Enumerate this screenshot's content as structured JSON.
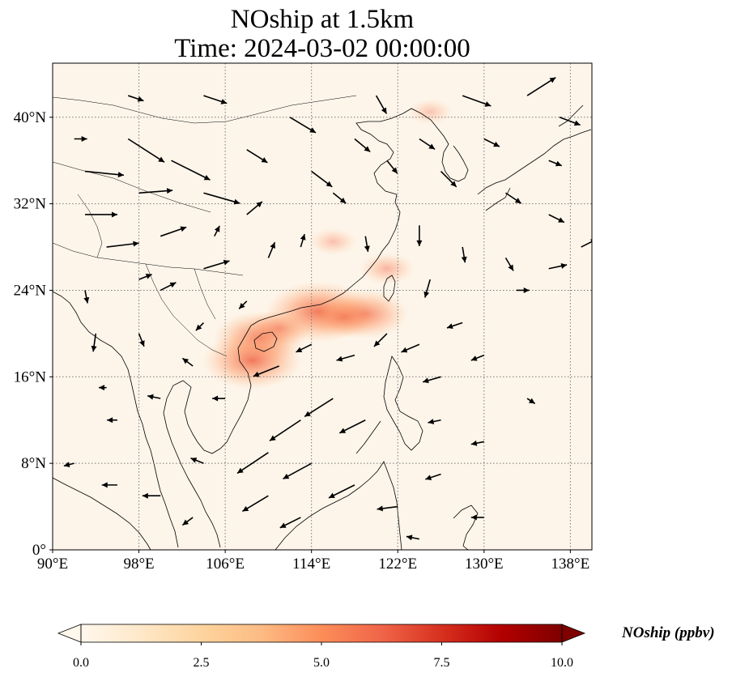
{
  "title_line1": "NOship at 1.5km",
  "title_line2": "Time: 2024-03-02 00:00:00",
  "map": {
    "lon_range": [
      90,
      140
    ],
    "lat_range": [
      0,
      45
    ],
    "lon_ticks": [
      {
        "value": 90,
        "label": "90°E"
      },
      {
        "value": 98,
        "label": "98°E"
      },
      {
        "value": 106,
        "label": "106°E"
      },
      {
        "value": 114,
        "label": "114°E"
      },
      {
        "value": 122,
        "label": "122°E"
      },
      {
        "value": 130,
        "label": "130°E"
      },
      {
        "value": 138,
        "label": "138°E"
      }
    ],
    "lat_ticks": [
      {
        "value": 0,
        "label": "0°"
      },
      {
        "value": 8,
        "label": "8°N"
      },
      {
        "value": 16,
        "label": "16°N"
      },
      {
        "value": 24,
        "label": "24°N"
      },
      {
        "value": 32,
        "label": "32°N"
      },
      {
        "value": 40,
        "label": "40°N"
      }
    ],
    "gridlines": true,
    "background_color": "#fdf5ea",
    "coastline_color": "#000000"
  },
  "colorbar": {
    "label": "NOship (ppbv)",
    "min": 0.0,
    "max": 10.0,
    "extend": "both",
    "colormap": "OrRd",
    "colors": [
      "#fff7ec",
      "#fee8c8",
      "#fdd49e",
      "#fdbb84",
      "#fc8d59",
      "#ef6548",
      "#d7301f",
      "#b30000",
      "#7f0000"
    ],
    "ticks": [
      {
        "value": 0.0,
        "label": "0.0"
      },
      {
        "value": 2.5,
        "label": "2.5"
      },
      {
        "value": 5.0,
        "label": "5.0"
      },
      {
        "value": 7.5,
        "label": "7.5"
      },
      {
        "value": 10.0,
        "label": "10.0"
      }
    ]
  },
  "plumes": [
    {
      "lon": 114.7,
      "lat": 22.0,
      "value": 5.5
    },
    {
      "lon": 109.2,
      "lat": 19.6,
      "value": 4.5
    },
    {
      "lon": 108.5,
      "lat": 17.5,
      "value": 5.0
    },
    {
      "lon": 119.0,
      "lat": 21.8,
      "value": 4.0
    },
    {
      "lon": 117.0,
      "lat": 21.5,
      "value": 3.0
    },
    {
      "lon": 111.0,
      "lat": 20.5,
      "value": 2.5
    },
    {
      "lon": 121.0,
      "lat": 26.0,
      "value": 1.8
    },
    {
      "lon": 116.0,
      "lat": 28.5,
      "value": 1.2
    },
    {
      "lon": 125.0,
      "lat": 40.5,
      "value": 1.0
    }
  ],
  "wind_vectors": [
    {
      "lon": 93,
      "lat": 35,
      "u": 3.0,
      "v": -0.3
    },
    {
      "lon": 97,
      "lat": 38,
      "u": 2.8,
      "v": -1.8
    },
    {
      "lon": 101,
      "lat": 36,
      "u": 3.0,
      "v": -1.5
    },
    {
      "lon": 104,
      "lat": 33,
      "u": 2.8,
      "v": -0.8
    },
    {
      "lon": 98,
      "lat": 33,
      "u": 2.6,
      "v": 0.2
    },
    {
      "lon": 93,
      "lat": 31,
      "u": 2.5,
      "v": 0.0
    },
    {
      "lon": 95,
      "lat": 28,
      "u": 2.5,
      "v": 0.3
    },
    {
      "lon": 100,
      "lat": 29,
      "u": 2.0,
      "v": 0.7
    },
    {
      "lon": 104,
      "lat": 26,
      "u": 2.0,
      "v": 0.6
    },
    {
      "lon": 100,
      "lat": 24,
      "u": 1.2,
      "v": 0.6
    },
    {
      "lon": 108,
      "lat": 31,
      "u": 1.2,
      "v": 1.0
    },
    {
      "lon": 108,
      "lat": 37,
      "u": 1.6,
      "v": -1.0
    },
    {
      "lon": 112,
      "lat": 40,
      "u": 2.0,
      "v": -1.2
    },
    {
      "lon": 114,
      "lat": 35,
      "u": 1.6,
      "v": -1.2
    },
    {
      "lon": 110,
      "lat": 27,
      "u": 0.5,
      "v": 1.2
    },
    {
      "lon": 113,
      "lat": 28,
      "u": 0.3,
      "v": 1.0
    },
    {
      "lon": 116,
      "lat": 33,
      "u": 1.0,
      "v": -0.8
    },
    {
      "lon": 118,
      "lat": 38,
      "u": 1.2,
      "v": -1.0
    },
    {
      "lon": 120,
      "lat": 42,
      "u": 0.8,
      "v": -1.4
    },
    {
      "lon": 124,
      "lat": 38,
      "u": 1.2,
      "v": -0.8
    },
    {
      "lon": 128,
      "lat": 42,
      "u": 2.2,
      "v": -0.8
    },
    {
      "lon": 126,
      "lat": 35,
      "u": 1.2,
      "v": -1.2
    },
    {
      "lon": 130,
      "lat": 38,
      "u": 1.2,
      "v": -0.6
    },
    {
      "lon": 134,
      "lat": 42,
      "u": 2.2,
      "v": 1.4
    },
    {
      "lon": 137,
      "lat": 40,
      "u": 1.6,
      "v": -0.6
    },
    {
      "lon": 132,
      "lat": 33,
      "u": 1.2,
      "v": -0.8
    },
    {
      "lon": 136,
      "lat": 36,
      "u": 1.0,
      "v": -0.4
    },
    {
      "lon": 124,
      "lat": 30,
      "u": 0.0,
      "v": -1.6
    },
    {
      "lon": 128,
      "lat": 28,
      "u": 0.2,
      "v": -1.2
    },
    {
      "lon": 132,
      "lat": 27,
      "u": 0.6,
      "v": -1.0
    },
    {
      "lon": 136,
      "lat": 26,
      "u": 1.4,
      "v": 0.3
    },
    {
      "lon": 139,
      "lat": 28,
      "u": 1.2,
      "v": 0.6
    },
    {
      "lon": 136,
      "lat": 31,
      "u": 1.2,
      "v": -0.6
    },
    {
      "lon": 133,
      "lat": 24,
      "u": 1.0,
      "v": 0.0
    },
    {
      "lon": 125,
      "lat": 25,
      "u": -0.4,
      "v": -1.4
    },
    {
      "lon": 121,
      "lat": 20,
      "u": -1.0,
      "v": -1.0
    },
    {
      "lon": 124,
      "lat": 19,
      "u": -1.4,
      "v": -0.6
    },
    {
      "lon": 128,
      "lat": 21,
      "u": -1.2,
      "v": -0.4
    },
    {
      "lon": 126,
      "lat": 16,
      "u": -1.4,
      "v": -0.4
    },
    {
      "lon": 130,
      "lat": 18,
      "u": -1.0,
      "v": -0.4
    },
    {
      "lon": 118,
      "lat": 18,
      "u": -1.4,
      "v": -0.4
    },
    {
      "lon": 114,
      "lat": 19,
      "u": -1.2,
      "v": -0.6
    },
    {
      "lon": 111,
      "lat": 17,
      "u": -2.0,
      "v": -0.8
    },
    {
      "lon": 116,
      "lat": 14,
      "u": -2.2,
      "v": -1.4
    },
    {
      "lon": 119,
      "lat": 12,
      "u": -2.0,
      "v": -1.0
    },
    {
      "lon": 113,
      "lat": 12,
      "u": -2.4,
      "v": -1.6
    },
    {
      "lon": 110,
      "lat": 9,
      "u": -2.4,
      "v": -1.6
    },
    {
      "lon": 114,
      "lat": 8,
      "u": -2.2,
      "v": -1.2
    },
    {
      "lon": 118,
      "lat": 6,
      "u": -2.0,
      "v": -1.0
    },
    {
      "lon": 110,
      "lat": 5,
      "u": -2.0,
      "v": -1.2
    },
    {
      "lon": 113,
      "lat": 3,
      "u": -1.6,
      "v": -0.8
    },
    {
      "lon": 122,
      "lat": 4,
      "u": -1.6,
      "v": -0.2
    },
    {
      "lon": 126,
      "lat": 7,
      "u": -1.2,
      "v": -0.4
    },
    {
      "lon": 126,
      "lat": 12,
      "u": -1.0,
      "v": -0.2
    },
    {
      "lon": 130,
      "lat": 10,
      "u": -1.0,
      "v": -0.2
    },
    {
      "lon": 134,
      "lat": 14,
      "u": 0.6,
      "v": -0.4
    },
    {
      "lon": 124,
      "lat": 1,
      "u": -1.0,
      "v": 0.2
    },
    {
      "lon": 106,
      "lat": 14,
      "u": -1.0,
      "v": 0.0
    },
    {
      "lon": 103,
      "lat": 17,
      "u": -0.8,
      "v": 0.6
    },
    {
      "lon": 100,
      "lat": 14,
      "u": -1.0,
      "v": 0.2
    },
    {
      "lon": 96,
      "lat": 12,
      "u": -0.8,
      "v": 0.0
    },
    {
      "lon": 92,
      "lat": 8,
      "u": -0.8,
      "v": -0.2
    },
    {
      "lon": 96,
      "lat": 6,
      "u": -1.2,
      "v": 0.0
    },
    {
      "lon": 100,
      "lat": 5,
      "u": -1.4,
      "v": 0.0
    },
    {
      "lon": 104,
      "lat": 8,
      "u": -1.0,
      "v": 0.4
    },
    {
      "lon": 103,
      "lat": 3,
      "u": -0.8,
      "v": -0.6
    },
    {
      "lon": 94,
      "lat": 20,
      "u": -0.2,
      "v": -1.4
    },
    {
      "lon": 98,
      "lat": 20,
      "u": 0.4,
      "v": -1.0
    },
    {
      "lon": 104,
      "lat": 21,
      "u": -0.6,
      "v": -0.6
    },
    {
      "lon": 93,
      "lat": 24,
      "u": 0.2,
      "v": -1.0
    },
    {
      "lon": 98,
      "lat": 25,
      "u": 1.0,
      "v": 0.4
    },
    {
      "lon": 105,
      "lat": 29,
      "u": 0.4,
      "v": 0.8
    },
    {
      "lon": 119,
      "lat": 29,
      "u": 0.2,
      "v": -1.2
    },
    {
      "lon": 121,
      "lat": 36,
      "u": 0.8,
      "v": -1.0
    },
    {
      "lon": 104,
      "lat": 42,
      "u": 1.8,
      "v": -0.6
    },
    {
      "lon": 97,
      "lat": 42,
      "u": 1.2,
      "v": -0.4
    },
    {
      "lon": 92,
      "lat": 38,
      "u": 1.0,
      "v": 0.0
    },
    {
      "lon": 130,
      "lat": 3,
      "u": -1.0,
      "v": 0.0
    },
    {
      "lon": 95,
      "lat": 15,
      "u": -0.6,
      "v": 0.0
    },
    {
      "lon": 108,
      "lat": 23,
      "u": -0.6,
      "v": -0.6
    }
  ]
}
